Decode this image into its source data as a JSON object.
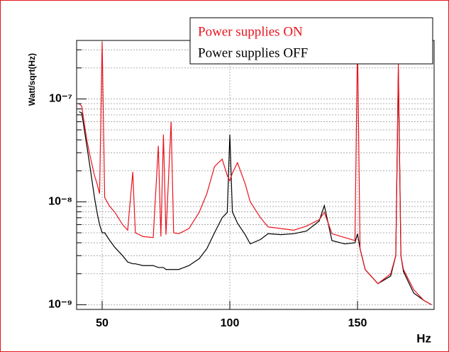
{
  "chart_data": {
    "type": "line",
    "xlabel": "Hz",
    "ylabel": "Watt/sqrt(Hz)",
    "x": [
      41,
      42,
      44,
      45,
      47,
      48,
      49,
      50,
      51,
      53,
      55,
      58,
      60,
      62,
      63,
      66,
      70,
      72,
      73,
      74,
      75,
      77,
      78,
      80,
      84,
      88,
      91,
      94,
      97,
      99,
      100,
      101,
      103,
      106,
      108,
      112,
      115,
      120,
      125,
      130,
      135,
      137,
      140,
      145,
      149,
      150,
      151,
      153,
      158,
      163,
      165,
      166,
      167,
      168,
      172,
      176,
      179
    ],
    "series": [
      {
        "name": "Power supplies ON",
        "color": "#e8141e",
        "values": [
          9e-08,
          8.5e-08,
          4e-08,
          3e-08,
          1.8e-08,
          1.5e-08,
          1.2e-08,
          3.6e-07,
          1.1e-08,
          9e-09,
          7.9e-09,
          6e-09,
          5.3e-09,
          1.95e-08,
          5e-09,
          4.6e-09,
          4.5e-09,
          3.5e-08,
          4.6e-09,
          4.5e-08,
          4.8e-09,
          6e-08,
          5e-09,
          4.9e-09,
          5.5e-09,
          7.9e-09,
          1.2e-08,
          2.2e-08,
          2.6e-08,
          1.8e-08,
          1.6e-08,
          1.9e-08,
          2.4e-08,
          1.5e-08,
          1e-08,
          7e-09,
          5.7e-09,
          5.5e-09,
          5.3e-09,
          5.8e-09,
          6.7e-09,
          7.9e-09,
          4.9e-09,
          4.5e-09,
          4.2e-09,
          3.6e-07,
          3.5e-09,
          2.2e-09,
          1.6e-09,
          2e-09,
          3e-09,
          2.2e-07,
          3e-09,
          2.2e-09,
          1.4e-09,
          1.1e-09,
          1e-09
        ]
      },
      {
        "name": "Power supplies OFF",
        "color": "#000000",
        "values": [
          7.5e-08,
          7.3e-08,
          3.5e-08,
          2.4e-08,
          1.1e-08,
          7.9e-09,
          6e-09,
          5e-09,
          5e-09,
          4.2e-09,
          3.6e-09,
          3e-09,
          2.6e-09,
          2.5e-09,
          2.5e-09,
          2.4e-09,
          2.4e-09,
          2.3e-09,
          2.3e-09,
          2.3e-09,
          2.2e-09,
          2.2e-09,
          2.2e-09,
          2.2e-09,
          2.4e-09,
          2.8e-09,
          3.5e-09,
          5e-09,
          7e-09,
          7.9e-09,
          4.5e-08,
          8e-09,
          6.2e-09,
          4.8e-09,
          3.9e-09,
          4.3e-09,
          4.9e-09,
          4.8e-09,
          4.9e-09,
          5.2e-09,
          6.5e-09,
          9.2e-09,
          4.2e-09,
          3.9e-09,
          4e-09,
          4.9e-09,
          3.5e-09,
          2.2e-09,
          1.6e-09,
          1.9e-09,
          3e-09,
          1.9e-07,
          3e-09,
          2.1e-09,
          1.3e-09,
          1.1e-09,
          1e-09
        ]
      }
    ],
    "xlim": [
      40,
      180
    ],
    "xticks": [
      50,
      100,
      150
    ],
    "ylim": [
      9e-10,
      3.7e-07
    ],
    "ylog": true,
    "yticks": [
      {
        "value": 1e-09,
        "label": "10⁻⁹"
      },
      {
        "value": 1e-08,
        "label": "10⁻⁸"
      },
      {
        "value": 1e-07,
        "label": "10⁻⁷"
      }
    ],
    "yminorticks": [
      2e-09,
      3e-09,
      4e-09,
      5e-09,
      6e-09,
      7e-09,
      8e-09,
      9e-09,
      2e-08,
      3e-08,
      4e-08,
      5e-08,
      6e-08,
      7e-08,
      8e-08,
      9e-08,
      2e-07,
      3e-07
    ],
    "grid": true
  }
}
